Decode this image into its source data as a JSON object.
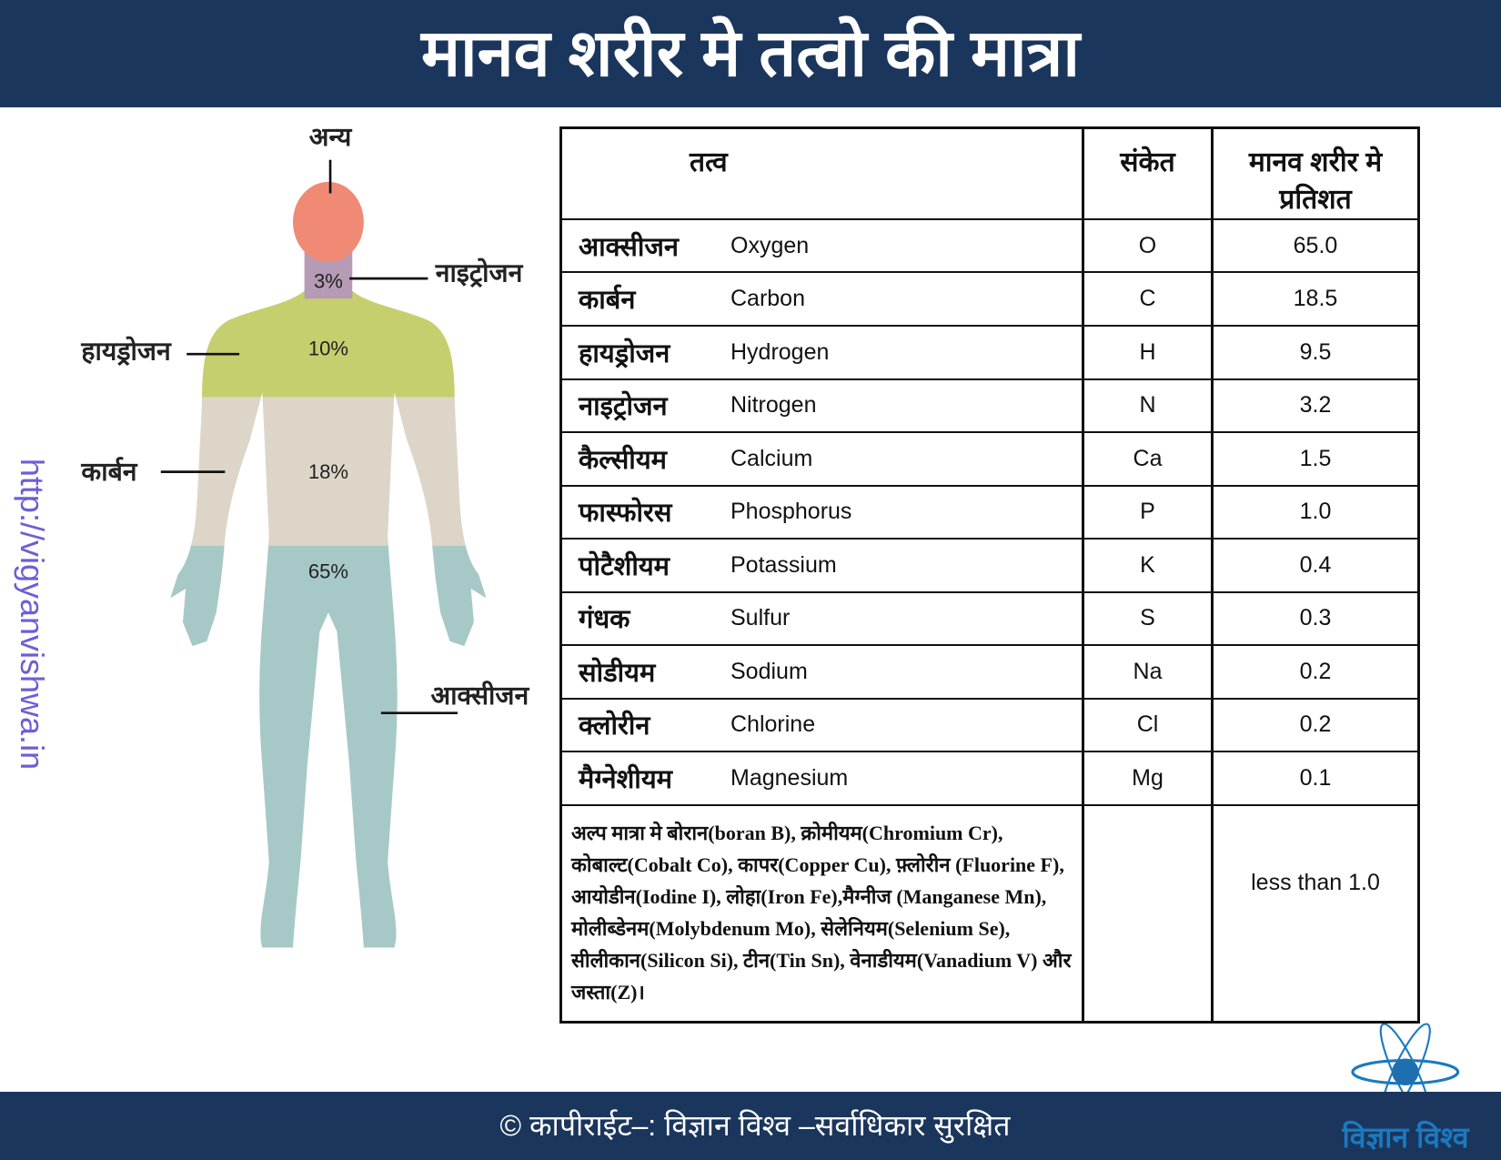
{
  "title": "मानव शरीर मे तत्वो की मात्रा",
  "side_url": "http://vigyanvishwa.in",
  "figure": {
    "labels": {
      "other": "अन्य",
      "nitrogen": "नाइट्रोजन",
      "hydrogen": "हायड्रोजन",
      "carbon": "कार्बन",
      "oxygen": "आक्सीजन"
    },
    "percents": {
      "nitrogen": "3%",
      "hydrogen": "10%",
      "carbon": "18%",
      "oxygen": "65%"
    },
    "colors": {
      "other": "#f08a75",
      "nitrogen": "#b59bb5",
      "hydrogen": "#c6cf6e",
      "carbon": "#ddd6c8",
      "oxygen": "#a6c9c7"
    }
  },
  "table": {
    "headers": {
      "element": "तत्व",
      "symbol": "संकेत",
      "percent": "मानव शरीर मे प्रतिशत"
    },
    "rows": [
      {
        "hi": "आक्सीजन",
        "en": "Oxygen",
        "sym": "O",
        "pct": "65.0"
      },
      {
        "hi": "कार्बन",
        "en": "Carbon",
        "sym": "C",
        "pct": "18.5"
      },
      {
        "hi": "हायड्रोजन",
        "en": "Hydrogen",
        "sym": "H",
        "pct": "9.5"
      },
      {
        "hi": "नाइट्रोजन",
        "en": "Nitrogen",
        "sym": "N",
        "pct": "3.2"
      },
      {
        "hi": "कैल्सीयम",
        "en": "Calcium",
        "sym": "Ca",
        "pct": "1.5"
      },
      {
        "hi": "फास्फोरस",
        "en": "Phosphorus",
        "sym": "P",
        "pct": "1.0"
      },
      {
        "hi": "पोटैशीयम",
        "en": "Potassium",
        "sym": "K",
        "pct": "0.4"
      },
      {
        "hi": "गंधक",
        "en": "Sulfur",
        "sym": "S",
        "pct": "0.3"
      },
      {
        "hi": "सोडीयम",
        "en": "Sodium",
        "sym": "Na",
        "pct": "0.2"
      },
      {
        "hi": "क्लोरीन",
        "en": "Chlorine",
        "sym": "Cl",
        "pct": "0.2"
      },
      {
        "hi": "मैग्नेशीयम",
        "en": "Magnesium",
        "sym": "Mg",
        "pct": "0.1"
      }
    ],
    "trace_note": "अल्प मात्रा मे बोरान(boran B), क्रोमीयम(Chromium Cr), कोबाल्ट(Cobalt Co), कापर(Copper Cu), फ़्लोरीन (Fluorine F), आयोडीन(Iodine I), लोहा(Iron Fe),मैग्नीज (Manganese Mn), मोलीब्डेनम(Molybdenum Mo), सेलेनियम(Selenium Se), सीलीकान(Silicon Si), टीन(Tin Sn), वेनाडीयम(Vanadium V) और जस्ता(Z)।",
    "trace_pct": "less than 1.0"
  },
  "footer": {
    "copyright": "© कापीराईट–: विज्ञान विश्व –सर्वाधिकार सुरक्षित",
    "logo_text": "विज्ञान विश्व"
  },
  "colors": {
    "band": "#1b365d",
    "url": "#6b5fd6",
    "logo": "#1a7ac0"
  }
}
